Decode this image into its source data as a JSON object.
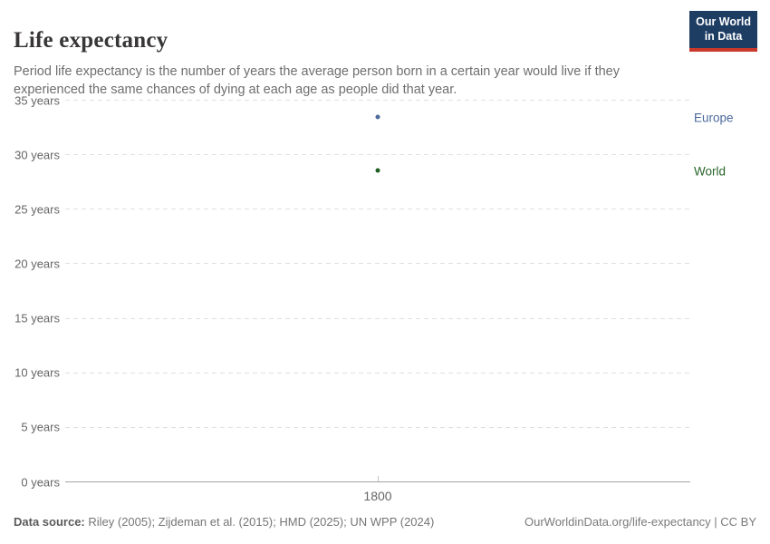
{
  "header": {
    "title": "Life expectancy",
    "subtitle": "Period life expectancy is the number of years the average person born in a certain year would live if they experienced the same chances of dying at each age as people did that year.",
    "logo": {
      "line1": "Our World",
      "line2": "in Data",
      "bg_color": "#1d3d63",
      "accent_color": "#c9392b"
    }
  },
  "chart_data": {
    "type": "scatter",
    "x": [
      1800
    ],
    "series": [
      {
        "name": "Europe",
        "values": [
          33.4
        ],
        "color": "#4c6a9c"
      },
      {
        "name": "World",
        "values": [
          28.5
        ],
        "color": "#1e5f23",
        "label_color": "#2c652c"
      }
    ],
    "title": "Life expectancy",
    "xlabel": "",
    "ylabel": "",
    "ylim": [
      0,
      35
    ],
    "y_ticks": [
      {
        "value": 0,
        "label": "0 years"
      },
      {
        "value": 5,
        "label": "5 years"
      },
      {
        "value": 10,
        "label": "10 years"
      },
      {
        "value": 15,
        "label": "15 years"
      },
      {
        "value": 20,
        "label": "20 years"
      },
      {
        "value": 25,
        "label": "25 years"
      },
      {
        "value": 30,
        "label": "30 years"
      },
      {
        "value": 35,
        "label": "35 years"
      }
    ],
    "x_ticks": [
      {
        "value": 1800,
        "label": "1800"
      }
    ],
    "grid": "horizontal-dashed",
    "legend_position": "right-of-plot"
  },
  "footer": {
    "source_label": "Data source:",
    "source_text": " Riley (2005); Zijdeman et al. (2015); HMD (2025); UN WPP (2024)",
    "attribution": "OurWorldinData.org/life-expectancy | CC BY"
  }
}
